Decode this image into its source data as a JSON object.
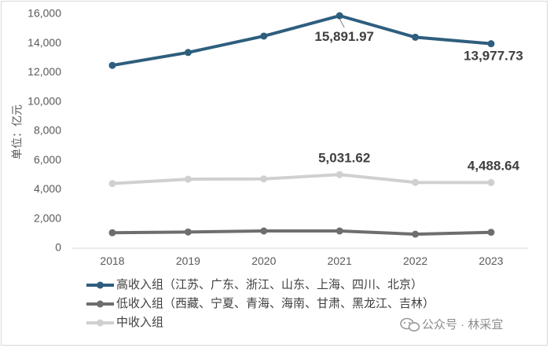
{
  "chart_data": {
    "type": "line",
    "x": [
      "2018",
      "2019",
      "2020",
      "2021",
      "2022",
      "2023"
    ],
    "ylabel": "单位：亿元",
    "ylim": [
      0,
      16000
    ],
    "yticks": [
      "0",
      "2,000",
      "4,000",
      "6,000",
      "8,000",
      "10,000",
      "12,000",
      "14,000",
      "16,000"
    ],
    "grid": false,
    "legend_position": "bottom-left",
    "series": [
      {
        "name": "高收入组（江苏、广东、浙江、山东、上海、四川、北京）",
        "color": "#2e5e7e",
        "values": [
          12500,
          13380,
          14500,
          15891.97,
          14420,
          13977.73
        ],
        "labels": [
          {
            "index": 3,
            "text": "15,891.97"
          },
          {
            "index": 5,
            "text": "13,977.73"
          }
        ]
      },
      {
        "name": "低收入组（西藏、宁夏、青海、海南、甘肃、黑龙江、吉林）",
        "color": "#6e6e6e",
        "values": [
          1060,
          1110,
          1180,
          1180,
          960,
          1090
        ],
        "labels": []
      },
      {
        "name": "中收入组",
        "color": "#d0d0d0",
        "values": [
          4420,
          4720,
          4740,
          5031.62,
          4500,
          4488.64
        ],
        "labels": [
          {
            "index": 3,
            "text": "5,031.62"
          },
          {
            "index": 5,
            "text": "4,488.64"
          }
        ]
      }
    ]
  },
  "watermark": {
    "icon": "wechat-icon",
    "text": "公众号 · 林采宜"
  }
}
